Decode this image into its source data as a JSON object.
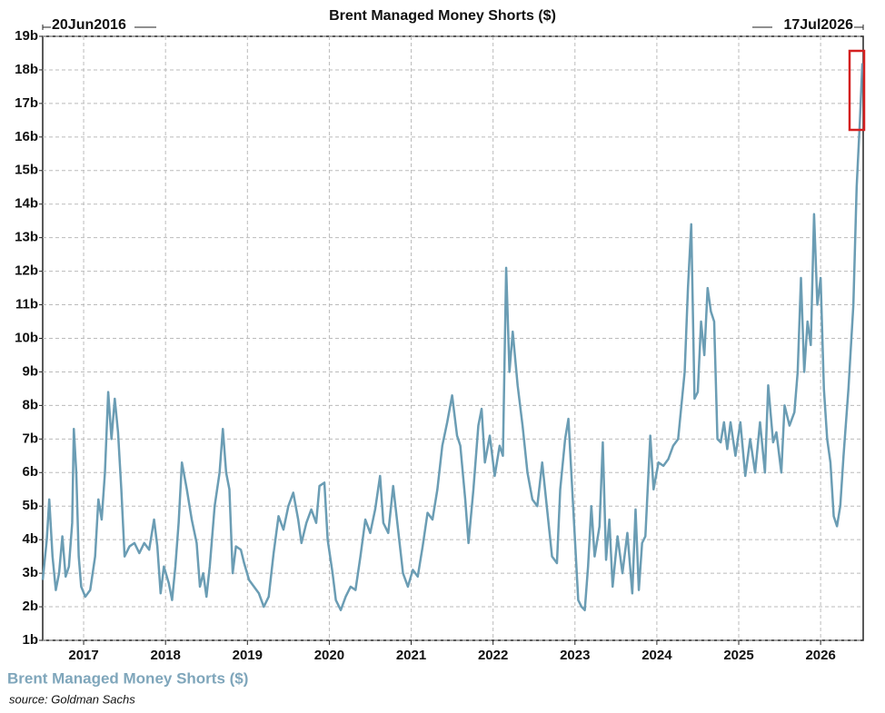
{
  "chart_data": {
    "type": "line",
    "title": "Brent Managed Money Shorts ($)",
    "start_label": "20Jun2016",
    "end_label": "17Jul2026",
    "source": "source: Goldman Sachs",
    "grid": true,
    "xlim": [
      2016.5,
      2026.52
    ],
    "xticks": [
      2017,
      2018,
      2019,
      2020,
      2021,
      2022,
      2023,
      2024,
      2025,
      2026
    ],
    "ylim": [
      1,
      19
    ],
    "yticks": [
      {
        "value": 1,
        "label": "1b"
      },
      {
        "value": 2,
        "label": "2b"
      },
      {
        "value": 3,
        "label": "3b"
      },
      {
        "value": 4,
        "label": "4b"
      },
      {
        "value": 5,
        "label": "5b"
      },
      {
        "value": 6,
        "label": "6b"
      },
      {
        "value": 7,
        "label": "7b"
      },
      {
        "value": 8,
        "label": "8b"
      },
      {
        "value": 9,
        "label": "9b"
      },
      {
        "value": 10,
        "label": "10b"
      },
      {
        "value": 11,
        "label": "11b"
      },
      {
        "value": 12,
        "label": "12b"
      },
      {
        "value": 13,
        "label": "13b"
      },
      {
        "value": 14,
        "label": "14b"
      },
      {
        "value": 15,
        "label": "15b"
      },
      {
        "value": 16,
        "label": "16b"
      },
      {
        "value": 17,
        "label": "17b"
      },
      {
        "value": 18,
        "label": "18b"
      },
      {
        "value": 19,
        "label": "19b"
      }
    ],
    "x": [
      2016.5,
      2016.55,
      2016.58,
      2016.62,
      2016.66,
      2016.7,
      2016.74,
      2016.78,
      2016.82,
      2016.86,
      2016.88,
      2016.91,
      2016.94,
      2016.97,
      2017.02,
      2017.08,
      2017.14,
      2017.18,
      2017.22,
      2017.26,
      2017.3,
      2017.34,
      2017.38,
      2017.42,
      2017.46,
      2017.5,
      2017.56,
      2017.62,
      2017.68,
      2017.74,
      2017.8,
      2017.86,
      2017.9,
      2017.94,
      2017.98,
      2018.04,
      2018.08,
      2018.12,
      2018.16,
      2018.2,
      2018.26,
      2018.32,
      2018.38,
      2018.42,
      2018.46,
      2018.5,
      2018.54,
      2018.6,
      2018.66,
      2018.7,
      2018.74,
      2018.78,
      2018.82,
      2018.86,
      2018.92,
      2018.96,
      2019.02,
      2019.08,
      2019.14,
      2019.2,
      2019.26,
      2019.32,
      2019.38,
      2019.44,
      2019.5,
      2019.56,
      2019.62,
      2019.66,
      2019.72,
      2019.78,
      2019.84,
      2019.88,
      2019.94,
      2019.98,
      2020.04,
      2020.08,
      2020.14,
      2020.2,
      2020.26,
      2020.32,
      2020.38,
      2020.44,
      2020.5,
      2020.56,
      2020.62,
      2020.66,
      2020.72,
      2020.78,
      2020.84,
      2020.9,
      2020.96,
      2021.02,
      2021.08,
      2021.14,
      2021.2,
      2021.26,
      2021.32,
      2021.38,
      2021.44,
      2021.5,
      2021.56,
      2021.6,
      2021.66,
      2021.7,
      2021.76,
      2021.82,
      2021.86,
      2021.9,
      2021.96,
      2022.02,
      2022.08,
      2022.12,
      2022.16,
      2022.2,
      2022.24,
      2022.3,
      2022.36,
      2022.42,
      2022.48,
      2022.54,
      2022.6,
      2022.66,
      2022.72,
      2022.78,
      2022.82,
      2022.88,
      2022.92,
      2022.96,
      2023.0,
      2023.04,
      2023.08,
      2023.12,
      2023.16,
      2023.2,
      2023.24,
      2023.3,
      2023.34,
      2023.38,
      2023.42,
      2023.46,
      2023.52,
      2023.58,
      2023.64,
      2023.7,
      2023.74,
      2023.78,
      2023.82,
      2023.86,
      2023.92,
      2023.96,
      2024.02,
      2024.08,
      2024.14,
      2024.2,
      2024.26,
      2024.3,
      2024.34,
      2024.38,
      2024.42,
      2024.46,
      2024.5,
      2024.54,
      2024.58,
      2024.62,
      2024.66,
      2024.7,
      2024.74,
      2024.78,
      2024.82,
      2024.86,
      2024.9,
      2024.96,
      2025.02,
      2025.08,
      2025.14,
      2025.2,
      2025.26,
      2025.32,
      2025.36,
      2025.42,
      2025.46,
      2025.52,
      2025.56,
      2025.62,
      2025.68,
      2025.72,
      2025.76,
      2025.8,
      2025.84,
      2025.88,
      2025.92,
      2025.96,
      2026.0,
      2026.04,
      2026.08,
      2026.12,
      2026.16,
      2026.2,
      2026.24,
      2026.28,
      2026.34,
      2026.4,
      2026.44,
      2026.48,
      2026.51
    ],
    "series": [
      {
        "name": "Brent Managed Money Shorts ($)",
        "color": "#6b9db4",
        "values": [
          2.8,
          4.0,
          5.2,
          3.5,
          2.5,
          3.0,
          4.1,
          2.9,
          3.2,
          4.5,
          7.3,
          6.0,
          3.5,
          2.6,
          2.3,
          2.5,
          3.5,
          5.2,
          4.6,
          6.0,
          8.4,
          7.0,
          8.2,
          7.2,
          5.5,
          3.5,
          3.8,
          3.9,
          3.6,
          3.9,
          3.7,
          4.6,
          3.8,
          2.4,
          3.2,
          2.7,
          2.2,
          3.2,
          4.5,
          6.3,
          5.5,
          4.6,
          3.9,
          2.6,
          3.0,
          2.3,
          3.2,
          5.0,
          6.0,
          7.3,
          6.0,
          5.5,
          3.0,
          3.8,
          3.7,
          3.3,
          2.8,
          2.6,
          2.4,
          2.0,
          2.3,
          3.6,
          4.7,
          4.3,
          5.0,
          5.4,
          4.6,
          3.9,
          4.5,
          4.9,
          4.5,
          5.6,
          5.7,
          4.0,
          3.0,
          2.2,
          1.9,
          2.3,
          2.6,
          2.5,
          3.5,
          4.6,
          4.2,
          4.9,
          5.9,
          4.5,
          4.2,
          5.6,
          4.3,
          3.0,
          2.6,
          3.1,
          2.9,
          3.8,
          4.8,
          4.6,
          5.5,
          6.8,
          7.5,
          8.3,
          7.1,
          6.8,
          5.2,
          3.9,
          5.5,
          7.4,
          7.9,
          6.3,
          7.1,
          5.9,
          6.8,
          6.5,
          12.1,
          9.0,
          10.2,
          8.6,
          7.4,
          6.0,
          5.2,
          5.0,
          6.3,
          4.9,
          3.5,
          3.3,
          5.5,
          7.0,
          7.6,
          5.8,
          4.0,
          2.2,
          2.0,
          1.9,
          3.2,
          5.0,
          3.5,
          4.4,
          6.9,
          3.4,
          4.6,
          2.6,
          4.1,
          3.0,
          4.2,
          2.4,
          4.9,
          2.5,
          3.9,
          4.1,
          7.1,
          5.5,
          6.3,
          6.2,
          6.4,
          6.8,
          7.0,
          8.0,
          9.0,
          11.5,
          13.4,
          8.2,
          8.4,
          10.5,
          9.5,
          11.5,
          10.8,
          10.5,
          7.0,
          6.9,
          7.5,
          6.7,
          7.5,
          6.5,
          7.5,
          5.9,
          7.0,
          6.0,
          7.5,
          6.0,
          8.6,
          6.9,
          7.2,
          6.0,
          8.0,
          7.4,
          7.8,
          9.0,
          11.8,
          9.0,
          10.5,
          9.8,
          13.7,
          11.0,
          11.8,
          8.5,
          7.0,
          6.3,
          4.7,
          4.4,
          5.0,
          6.5,
          8.5,
          11.0,
          14.5,
          16.5,
          18.2
        ]
      }
    ]
  }
}
